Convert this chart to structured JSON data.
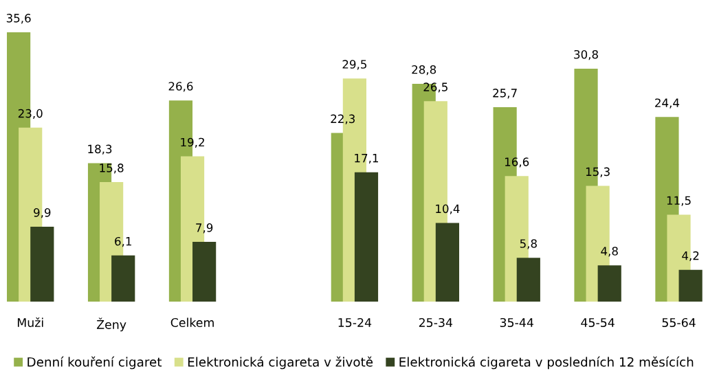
{
  "chart_data": {
    "type": "bar",
    "categories": [
      "Muži",
      "Ženy",
      "Celkem",
      null,
      "15-24",
      "25-34",
      "35-44",
      "45-54",
      "55-64"
    ],
    "series": [
      {
        "name": "Denní kouření cigaret",
        "color": "#95b14b",
        "values": [
          35.6,
          18.3,
          26.6,
          null,
          22.3,
          28.8,
          25.7,
          30.8,
          24.4
        ],
        "value_labels": [
          "35,6",
          "18,3",
          "26,6",
          null,
          "22,3",
          "28,8",
          "25,7",
          "30,8",
          "24,4"
        ]
      },
      {
        "name": "Elektronická cigareta v životě",
        "color": "#d8e08b",
        "values": [
          23.0,
          15.8,
          19.2,
          null,
          29.5,
          26.5,
          16.6,
          15.3,
          11.5
        ],
        "value_labels": [
          "23,0",
          "15,8",
          "19,2",
          null,
          "29,5",
          "26,5",
          "16,6",
          "15,3",
          "11,5"
        ]
      },
      {
        "name": "Elektronická cigareta v posledních 12 měsících",
        "color": "#344320",
        "values": [
          9.9,
          6.1,
          7.9,
          null,
          17.1,
          10.4,
          5.8,
          4.8,
          4.2
        ],
        "value_labels": [
          "9,9",
          "6,1",
          "7,9",
          null,
          "17,1",
          "10,4",
          "5,8",
          "4,8",
          "4,2"
        ]
      }
    ],
    "tick_labels": "x",
    "grid": false,
    "legend": "bottom"
  }
}
